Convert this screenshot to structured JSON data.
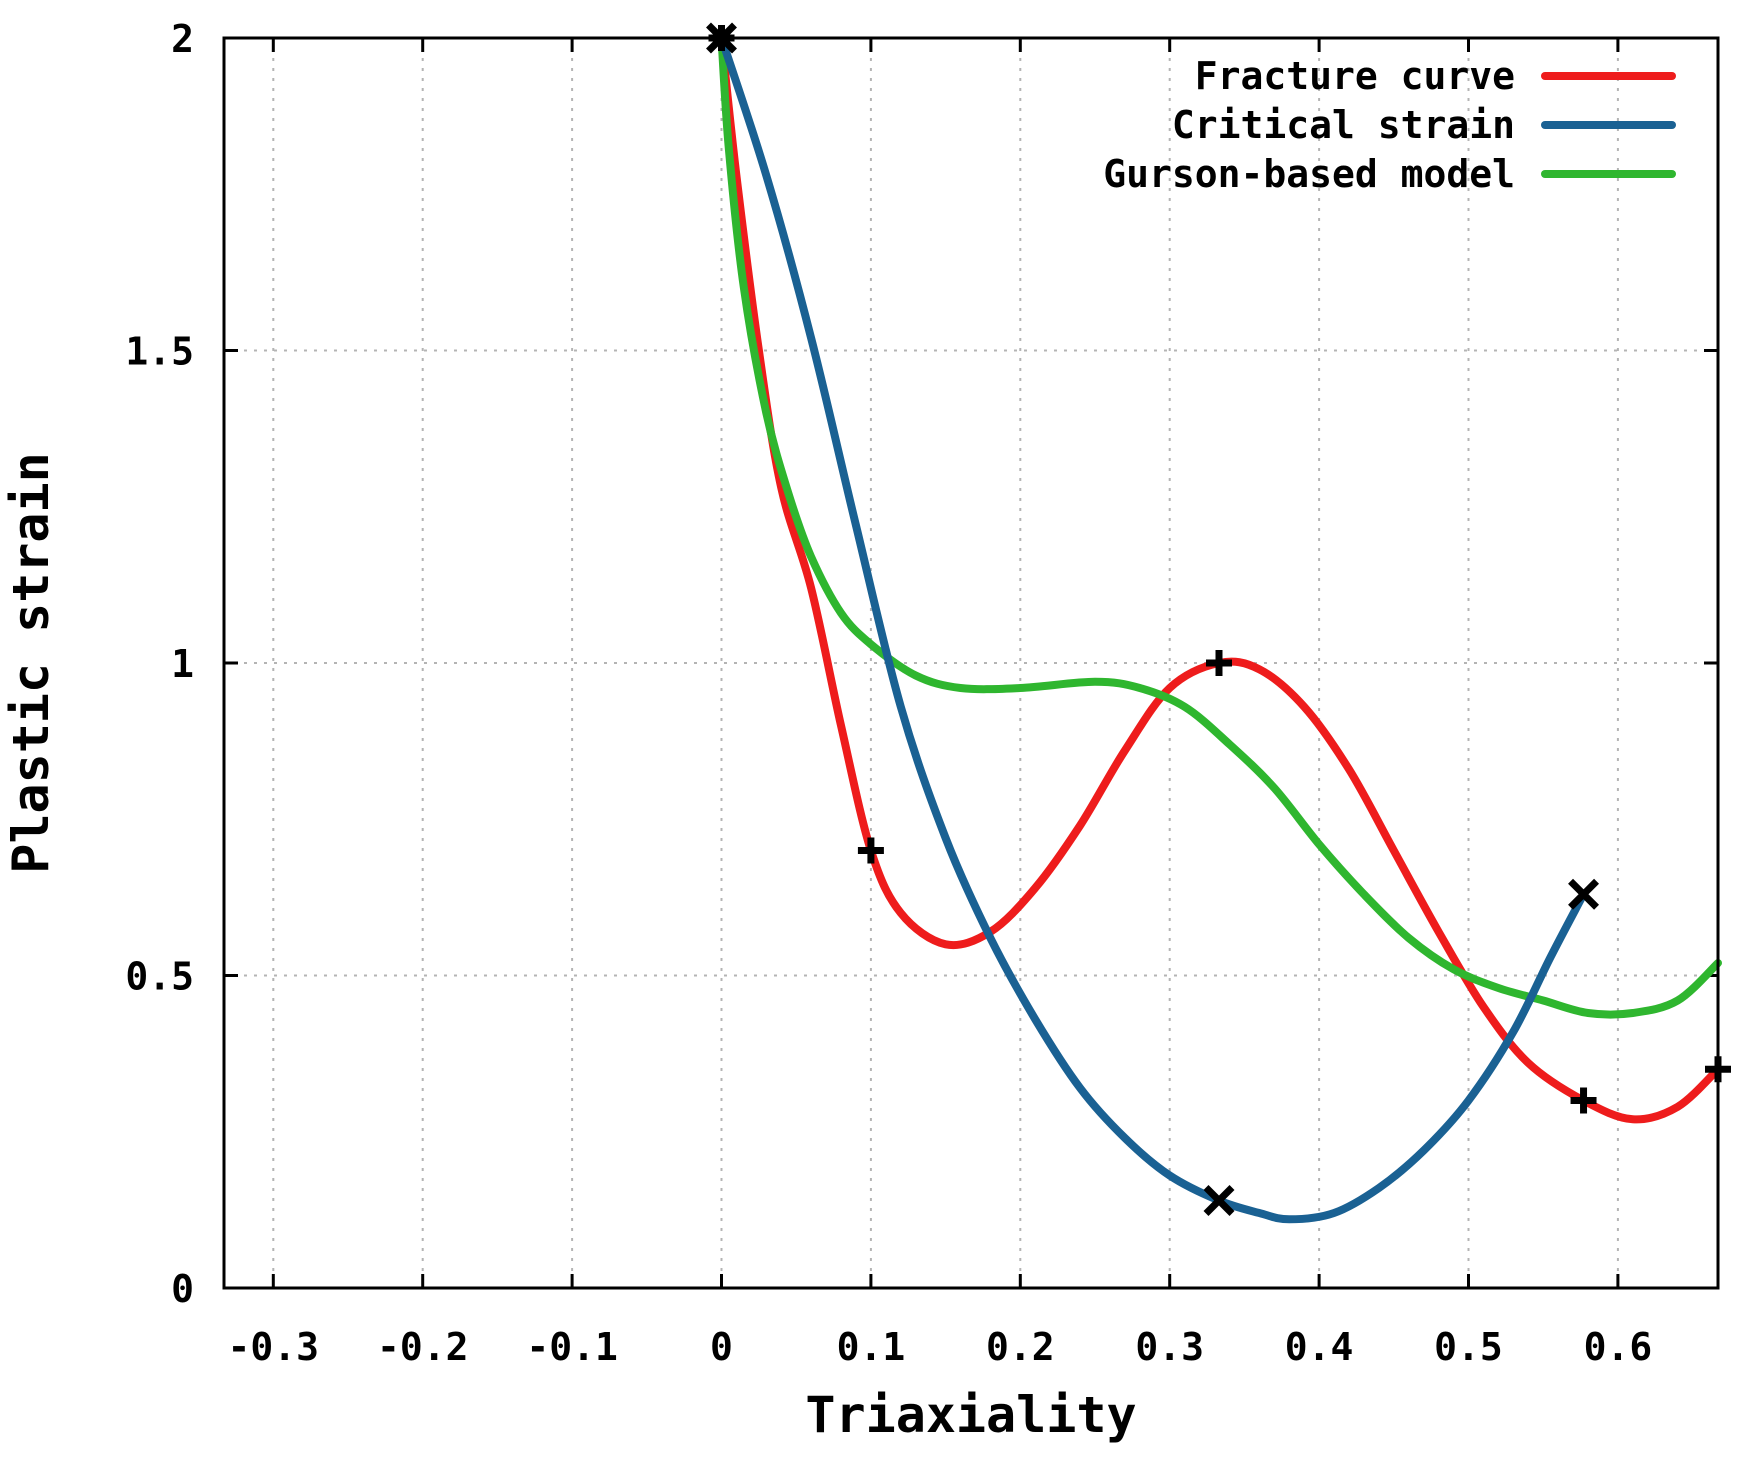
{
  "chart_data": {
    "type": "line",
    "title": "",
    "xlabel": "Triaxiality",
    "ylabel": "Plastic strain",
    "xlim": [
      -0.333,
      0.667
    ],
    "ylim": [
      0,
      2
    ],
    "x_ticks": [
      -0.3,
      -0.2,
      -0.1,
      0,
      0.1,
      0.2,
      0.3,
      0.4,
      0.5,
      0.6
    ],
    "x_tick_labels": [
      "-0.3",
      "-0.2",
      "-0.1",
      "0",
      "0.1",
      "0.2",
      "0.3",
      "0.4",
      "0.5",
      "0.6"
    ],
    "y_ticks": [
      0,
      0.5,
      1,
      1.5,
      2
    ],
    "y_tick_labels": [
      "0",
      "0.5",
      "1",
      "1.5",
      "2"
    ],
    "grid": true,
    "legend_position": "top-right",
    "series": [
      {
        "name": "Fracture curve",
        "color": "#ee1c1c",
        "marker": "plus",
        "markers": [
          [
            0,
            2.0
          ],
          [
            0.1,
            0.7
          ],
          [
            0.333,
            1.0
          ],
          [
            0.577,
            0.3
          ],
          [
            0.667,
            0.35
          ]
        ],
        "points": [
          [
            0,
            2.0
          ],
          [
            0.01,
            1.78
          ],
          [
            0.025,
            1.5
          ],
          [
            0.04,
            1.28
          ],
          [
            0.06,
            1.12
          ],
          [
            0.08,
            0.9
          ],
          [
            0.1,
            0.7
          ],
          [
            0.12,
            0.6
          ],
          [
            0.15,
            0.55
          ],
          [
            0.18,
            0.57
          ],
          [
            0.21,
            0.64
          ],
          [
            0.24,
            0.74
          ],
          [
            0.27,
            0.86
          ],
          [
            0.3,
            0.96
          ],
          [
            0.333,
            1.0
          ],
          [
            0.36,
            0.99
          ],
          [
            0.39,
            0.93
          ],
          [
            0.42,
            0.83
          ],
          [
            0.45,
            0.7
          ],
          [
            0.48,
            0.57
          ],
          [
            0.51,
            0.45
          ],
          [
            0.54,
            0.36
          ],
          [
            0.577,
            0.3
          ],
          [
            0.61,
            0.27
          ],
          [
            0.64,
            0.29
          ],
          [
            0.667,
            0.35
          ]
        ]
      },
      {
        "name": "Critical strain",
        "color": "#1a6193",
        "marker": "cross",
        "markers": [
          [
            0,
            2.0
          ],
          [
            0.333,
            0.14
          ],
          [
            0.577,
            0.63
          ]
        ],
        "points": [
          [
            0,
            2.0
          ],
          [
            0.03,
            1.78
          ],
          [
            0.06,
            1.52
          ],
          [
            0.09,
            1.22
          ],
          [
            0.12,
            0.93
          ],
          [
            0.15,
            0.72
          ],
          [
            0.18,
            0.56
          ],
          [
            0.21,
            0.43
          ],
          [
            0.24,
            0.32
          ],
          [
            0.27,
            0.24
          ],
          [
            0.3,
            0.18
          ],
          [
            0.333,
            0.14
          ],
          [
            0.36,
            0.12
          ],
          [
            0.38,
            0.11
          ],
          [
            0.41,
            0.12
          ],
          [
            0.44,
            0.16
          ],
          [
            0.47,
            0.22
          ],
          [
            0.5,
            0.3
          ],
          [
            0.53,
            0.41
          ],
          [
            0.555,
            0.53
          ],
          [
            0.577,
            0.63
          ]
        ]
      },
      {
        "name": "Gurson-based model",
        "color": "#2fb62f",
        "marker": "none",
        "markers": [],
        "points": [
          [
            0,
            2.0
          ],
          [
            0.005,
            1.82
          ],
          [
            0.015,
            1.6
          ],
          [
            0.03,
            1.4
          ],
          [
            0.045,
            1.27
          ],
          [
            0.06,
            1.17
          ],
          [
            0.08,
            1.08
          ],
          [
            0.1,
            1.03
          ],
          [
            0.13,
            0.98
          ],
          [
            0.16,
            0.96
          ],
          [
            0.2,
            0.96
          ],
          [
            0.25,
            0.97
          ],
          [
            0.28,
            0.96
          ],
          [
            0.31,
            0.93
          ],
          [
            0.34,
            0.87
          ],
          [
            0.37,
            0.8
          ],
          [
            0.4,
            0.71
          ],
          [
            0.43,
            0.63
          ],
          [
            0.46,
            0.56
          ],
          [
            0.49,
            0.51
          ],
          [
            0.52,
            0.48
          ],
          [
            0.55,
            0.46
          ],
          [
            0.58,
            0.44
          ],
          [
            0.61,
            0.44
          ],
          [
            0.64,
            0.46
          ],
          [
            0.667,
            0.52
          ]
        ]
      }
    ]
  }
}
